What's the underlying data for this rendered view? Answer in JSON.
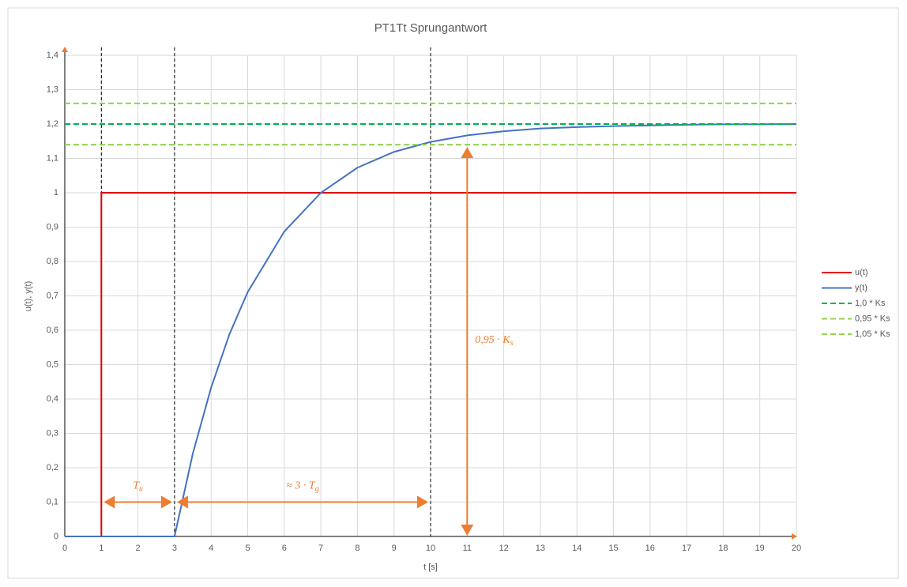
{
  "chart_data": {
    "type": "line",
    "title": "PT1Tt Sprungantwort",
    "x_label": "t [s]",
    "y_label": "u(t), y(t)",
    "xlim": [
      0,
      20
    ],
    "xticks": [
      0,
      1,
      2,
      3,
      4,
      5,
      6,
      7,
      8,
      9,
      10,
      11,
      12,
      13,
      14,
      15,
      16,
      17,
      18,
      19,
      20
    ],
    "ylim": [
      0,
      1.4
    ],
    "yticks": [
      0,
      {
        "value": 0.1,
        "label": "0,1"
      },
      {
        "value": 0.2,
        "label": "0,2"
      },
      {
        "value": 0.3,
        "label": "0,3"
      },
      {
        "value": 0.4,
        "label": "0,4"
      },
      {
        "value": 0.5,
        "label": "0,5"
      },
      {
        "value": 0.6,
        "label": "0,6"
      },
      {
        "value": 0.7,
        "label": "0,7"
      },
      {
        "value": 0.8,
        "label": "0,8"
      },
      {
        "value": 0.9,
        "label": "0,9"
      },
      1,
      {
        "value": 1.1,
        "label": "1,1"
      },
      {
        "value": 1.2,
        "label": "1,2"
      },
      {
        "value": 1.3,
        "label": "1,3"
      },
      {
        "value": 1.4,
        "label": "1,4"
      }
    ],
    "grid": true,
    "legend": "right",
    "series": [
      {
        "name": "u(t)",
        "color": "#e00000",
        "dashed": false,
        "x": [
          0,
          1,
          1,
          20
        ],
        "values": [
          0,
          0,
          1,
          1
        ]
      },
      {
        "name": "y(t)",
        "color": "#4472c4",
        "dashed": false,
        "x": [
          0,
          1,
          2,
          3,
          3.5,
          4,
          4.5,
          5,
          6,
          7,
          8,
          9,
          10,
          11,
          12,
          13,
          14,
          15,
          16,
          17,
          18,
          19,
          20
        ],
        "values": [
          0,
          0,
          0,
          0,
          0.241,
          0.433,
          0.588,
          0.711,
          0.887,
          1.0,
          1.073,
          1.119,
          1.148,
          1.167,
          1.179,
          1.187,
          1.191,
          1.194,
          1.196,
          1.198,
          1.199,
          1.199,
          1.2
        ]
      },
      {
        "name": "1,0 * Ks",
        "color": "#00b050",
        "dashed": true,
        "x": [
          0,
          20
        ],
        "values": [
          1.2,
          1.2
        ]
      },
      {
        "name": "0,95 * Ks",
        "color": "#92d050",
        "dashed": true,
        "x": [
          0,
          20
        ],
        "values": [
          1.14,
          1.14
        ]
      },
      {
        "name": "1,05 * Ks",
        "color": "#92d050",
        "dashed": true,
        "x": [
          0,
          20
        ],
        "values": [
          1.26,
          1.26
        ]
      }
    ],
    "vlines": [
      1,
      3,
      10
    ],
    "annotations": [
      {
        "text": "T",
        "sub": "u",
        "x1": 1,
        "x2": 3,
        "y": 0.1
      },
      {
        "text": "≈ 3 · T",
        "sub": "g",
        "x1": 3,
        "x2": 10,
        "y": 0.1
      },
      {
        "text": "0,95 · K",
        "sub": "s",
        "x": 11,
        "y1": 0,
        "y2": 1.14
      }
    ]
  }
}
